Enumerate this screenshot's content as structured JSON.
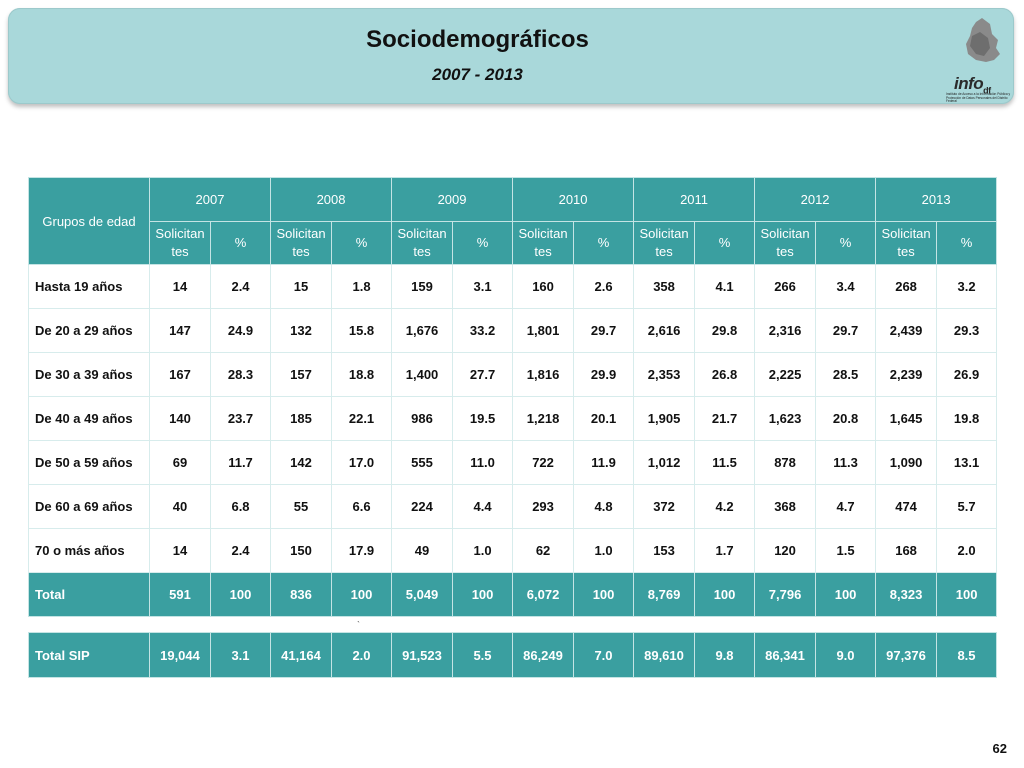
{
  "header": {
    "title": "Sociodemográficos",
    "subtitle": "2007 - 2013",
    "logo_text": "info",
    "logo_suffix": "df",
    "logo_caption": "Instituto de Acceso a la Información Pública y Protección de Datos Personales del Distrito Federal"
  },
  "table": {
    "group_header": "Grupos de edad",
    "years": [
      "2007",
      "2008",
      "2009",
      "2010",
      "2011",
      "2012",
      "2013"
    ],
    "sub_solicitantes": "Solicitan tes",
    "sub_percent": "%",
    "rows": [
      {
        "label": "Hasta 19 años",
        "values": [
          "14",
          "2.4",
          "15",
          "1.8",
          "159",
          "3.1",
          "160",
          "2.6",
          "358",
          "4.1",
          "266",
          "3.4",
          "268",
          "3.2"
        ]
      },
      {
        "label": "De 20 a 29 años",
        "values": [
          "147",
          "24.9",
          "132",
          "15.8",
          "1,676",
          "33.2",
          "1,801",
          "29.7",
          "2,616",
          "29.8",
          "2,316",
          "29.7",
          "2,439",
          "29.3"
        ]
      },
      {
        "label": "De 30 a 39 años",
        "values": [
          "167",
          "28.3",
          "157",
          "18.8",
          "1,400",
          "27.7",
          "1,816",
          "29.9",
          "2,353",
          "26.8",
          "2,225",
          "28.5",
          "2,239",
          "26.9"
        ]
      },
      {
        "label": "De 40 a 49 años",
        "values": [
          "140",
          "23.7",
          "185",
          "22.1",
          "986",
          "19.5",
          "1,218",
          "20.1",
          "1,905",
          "21.7",
          "1,623",
          "20.8",
          "1,645",
          "19.8"
        ]
      },
      {
        "label": "De 50 a 59 años",
        "values": [
          "69",
          "11.7",
          "142",
          "17.0",
          "555",
          "11.0",
          "722",
          "11.9",
          "1,012",
          "11.5",
          "878",
          "11.3",
          "1,090",
          "13.1"
        ]
      },
      {
        "label": "De 60 a 69 años",
        "values": [
          "40",
          "6.8",
          "55",
          "6.6",
          "224",
          "4.4",
          "293",
          "4.8",
          "372",
          "4.2",
          "368",
          "4.7",
          "474",
          "5.7"
        ]
      },
      {
        "label": "70 o más años",
        "values": [
          "14",
          "2.4",
          "150",
          "17.9",
          "49",
          "1.0",
          "62",
          "1.0",
          "153",
          "1.7",
          "120",
          "1.5",
          "168",
          "2.0"
        ]
      }
    ],
    "total": {
      "label": "Total",
      "values": [
        "591",
        "100",
        "836",
        "100",
        "5,049",
        "100",
        "6,072",
        "100",
        "8,769",
        "100",
        "7,796",
        "100",
        "8,323",
        "100"
      ]
    }
  },
  "sip": {
    "label": "Total SIP",
    "values": [
      "19,044",
      "3.1",
      "41,164",
      "2.0",
      "91,523",
      "5.5",
      "86,249",
      "7.0",
      "89,610",
      "9.8",
      "86,341",
      "9.0",
      "97,376",
      "8.5"
    ]
  },
  "tick_mark": "`",
  "page_number": "62",
  "colors": {
    "banner": "#a9d8da",
    "table_header": "#3a9fa0"
  }
}
